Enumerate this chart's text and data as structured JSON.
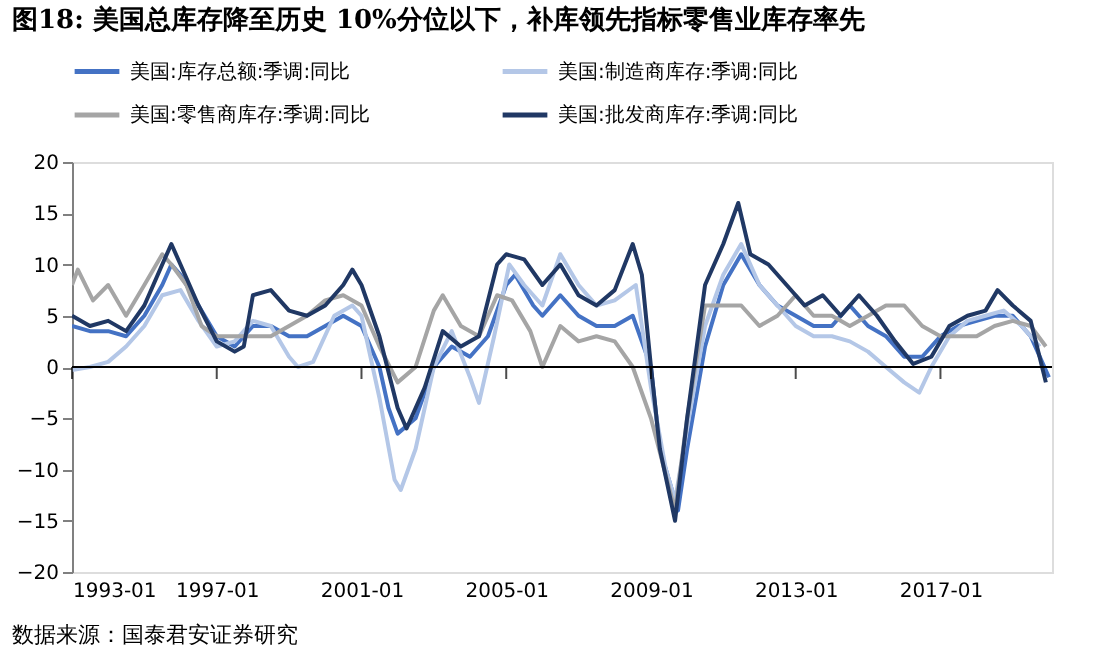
{
  "chart_data": {
    "type": "line",
    "title": "图18: 美国总库存降至历史 10%分位以下，补库领先指标零售业库存率先",
    "annotations": [
      "数据来源：国泰君安证券研究"
    ],
    "xlim": [
      "1993-01",
      "2020-02"
    ],
    "xticks": [
      "1993-01",
      "1997-01",
      "2001-01",
      "2005-01",
      "2009-01",
      "2013-01",
      "2017-01"
    ],
    "ylim": [
      -20,
      20
    ],
    "yticks": [
      -20,
      -15,
      -10,
      -5,
      0,
      5,
      10,
      15,
      20
    ],
    "grid": false,
    "legend": "top",
    "marker": "none",
    "line_style": "solid",
    "ref_lines": [
      {
        "axis": "y",
        "value": 0,
        "color": "#000000"
      }
    ],
    "series": [
      {
        "name": "美国:库存总额:季调:同比",
        "color": "#4472c4",
        "x": [
          "1993-01",
          "1993-07",
          "1994-01",
          "1994-07",
          "1995-01",
          "1995-07",
          "1995-10",
          "1996-01",
          "1996-07",
          "1997-01",
          "1997-07",
          "1998-01",
          "1998-07",
          "1999-01",
          "1999-07",
          "2000-01",
          "2000-07",
          "2001-01",
          "2001-07",
          "2001-10",
          "2002-01",
          "2002-07",
          "2003-01",
          "2003-07",
          "2004-01",
          "2004-07",
          "2005-01",
          "2005-04",
          "2005-10",
          "2006-01",
          "2006-07",
          "2007-01",
          "2007-07",
          "2008-01",
          "2008-07",
          "2009-01",
          "2009-04",
          "2009-10",
          "2010-01",
          "2010-07",
          "2011-01",
          "2011-07",
          "2012-01",
          "2012-07",
          "2013-01",
          "2013-07",
          "2014-01",
          "2014-07",
          "2015-01",
          "2015-07",
          "2016-01",
          "2016-07",
          "2017-01",
          "2017-07",
          "2018-01",
          "2018-07",
          "2019-01",
          "2019-07",
          "2020-01"
        ],
        "values": [
          4,
          3.5,
          3.5,
          3,
          5,
          8,
          10,
          9,
          6,
          3,
          2,
          4,
          4,
          3,
          3,
          4,
          5,
          4,
          0,
          -4,
          -6.5,
          -5,
          0,
          2,
          1,
          3,
          8,
          9,
          6,
          5,
          7,
          5,
          4,
          4,
          5,
          0,
          -8,
          -14,
          -8,
          2,
          8,
          11,
          8,
          6,
          5,
          4,
          4,
          6,
          4,
          3,
          1,
          1,
          3,
          4,
          4.5,
          5,
          5,
          3,
          -1
        ]
      },
      {
        "name": "美国:制造商库存:季调:同比",
        "color": "#b4c7e7",
        "x": [
          "1993-01",
          "1993-07",
          "1994-01",
          "1994-07",
          "1995-01",
          "1995-07",
          "1996-01",
          "1996-07",
          "1997-01",
          "1997-07",
          "1998-01",
          "1998-07",
          "1999-01",
          "1999-04",
          "1999-09",
          "2000-04",
          "2000-10",
          "2001-01",
          "2001-07",
          "2001-12",
          "2002-02",
          "2002-07",
          "2003-01",
          "2003-07",
          "2004-01",
          "2004-04",
          "2004-09",
          "2005-02",
          "2005-07",
          "2006-01",
          "2006-07",
          "2007-01",
          "2007-07",
          "2008-01",
          "2008-08",
          "2009-01",
          "2009-06",
          "2009-09",
          "2010-01",
          "2010-07",
          "2011-01",
          "2011-07",
          "2012-01",
          "2012-07",
          "2013-01",
          "2013-07",
          "2014-01",
          "2014-07",
          "2015-01",
          "2015-07",
          "2016-01",
          "2016-06",
          "2016-10",
          "2017-04",
          "2017-10",
          "2018-04",
          "2018-10",
          "2019-04",
          "2019-10"
        ],
        "values": [
          -0.3,
          0,
          0.5,
          2,
          4,
          7,
          7.5,
          4.5,
          2,
          2.5,
          4.5,
          4,
          1,
          0,
          0.5,
          5,
          6,
          5,
          -3,
          -11,
          -12,
          -8,
          0,
          3.5,
          -1,
          -3.5,
          3,
          10,
          8,
          6,
          11,
          8,
          6,
          6.5,
          8,
          -2,
          -10,
          -13,
          -6,
          4,
          9,
          12,
          8,
          6,
          4,
          3,
          3,
          2.5,
          1.5,
          0,
          -1.5,
          -2.5,
          0,
          3,
          4.5,
          5,
          5.5,
          4,
          2
        ]
      },
      {
        "name": "美国:零售商库存:季调:同比",
        "color": "#a5a5a5",
        "x": [
          "1993-01",
          "1993-03",
          "1993-08",
          "1994-01",
          "1994-07",
          "1995-01",
          "1995-07",
          "1995-10",
          "1996-03",
          "1996-08",
          "1997-01",
          "1997-07",
          "1998-01",
          "1998-07",
          "1999-01",
          "1999-07",
          "2000-01",
          "2000-07",
          "2001-01",
          "2001-07",
          "2002-01",
          "2002-07",
          "2003-01",
          "2003-04",
          "2003-10",
          "2004-04",
          "2004-10",
          "2005-03",
          "2005-09",
          "2006-01",
          "2006-07",
          "2007-01",
          "2007-07",
          "2008-01",
          "2008-07",
          "2009-01",
          "2009-09",
          "2010-01",
          "2010-07",
          "2011-01",
          "2011-07",
          "2012-01",
          "2012-07",
          "2013-01",
          "2013-07",
          "2014-01",
          "2014-07",
          "2015-01",
          "2015-07",
          "2016-01",
          "2016-07",
          "2017-01",
          "2017-07",
          "2018-01",
          "2018-07",
          "2019-01",
          "2019-07",
          "2019-12"
        ],
        "values": [
          8,
          9.5,
          6.5,
          8,
          5,
          8,
          11,
          10,
          8,
          4,
          3,
          3,
          3,
          3,
          4,
          5,
          6.5,
          7,
          6,
          2,
          -1.5,
          0,
          5.5,
          7,
          4,
          3,
          7,
          6.5,
          3.5,
          0,
          4,
          2.5,
          3,
          2.5,
          0,
          -5,
          -14,
          -5,
          6,
          6,
          6,
          4,
          5,
          7,
          5,
          5,
          4,
          5,
          6,
          6,
          4,
          3,
          3,
          3,
          4,
          4.5,
          4,
          2
        ]
      },
      {
        "name": "美国:批发商库存:季调:同比",
        "color": "#203864",
        "x": [
          "1993-01",
          "1993-07",
          "1994-01",
          "1994-07",
          "1995-01",
          "1995-07",
          "1995-10",
          "1996-01",
          "1996-07",
          "1997-01",
          "1997-07",
          "1997-10",
          "1998-01",
          "1998-07",
          "1999-01",
          "1999-07",
          "2000-01",
          "2000-07",
          "2000-10",
          "2001-01",
          "2001-07",
          "2002-01",
          "2002-04",
          "2002-10",
          "2003-04",
          "2003-10",
          "2004-04",
          "2004-10",
          "2005-01",
          "2005-07",
          "2006-01",
          "2006-07",
          "2007-01",
          "2007-07",
          "2008-01",
          "2008-07",
          "2008-10",
          "2009-01",
          "2009-04",
          "2009-09",
          "2010-01",
          "2010-07",
          "2011-01",
          "2011-06",
          "2011-10",
          "2012-04",
          "2012-10",
          "2013-04",
          "2013-10",
          "2014-04",
          "2014-10",
          "2015-04",
          "2015-10",
          "2016-04",
          "2016-10",
          "2017-04",
          "2017-10",
          "2018-04",
          "2018-08",
          "2019-01",
          "2019-07",
          "2019-12"
        ],
        "values": [
          5,
          4,
          4.5,
          3.5,
          6,
          10,
          12,
          10,
          6,
          2.5,
          1.5,
          2,
          7,
          7.5,
          5.5,
          5,
          6,
          8,
          9.5,
          8,
          3,
          -4,
          -6,
          -2,
          3.5,
          2,
          3,
          10,
          11,
          10.5,
          8,
          10,
          7,
          6,
          7.5,
          12,
          9,
          0,
          -8,
          -15,
          -5,
          8,
          12,
          16,
          11,
          10,
          8,
          6,
          7,
          5,
          7,
          5,
          2.5,
          0.3,
          1,
          4,
          5,
          5.5,
          7.5,
          6,
          4.5,
          -1.5
        ]
      }
    ]
  }
}
